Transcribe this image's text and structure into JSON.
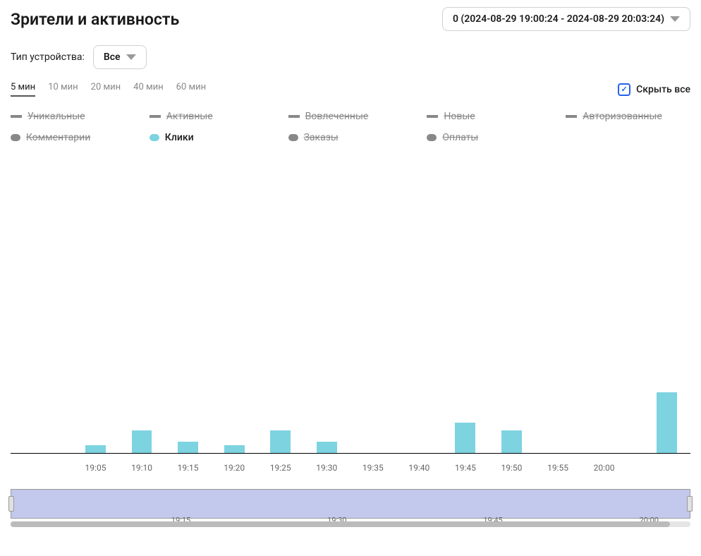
{
  "header": {
    "title": "Зрители и активность",
    "date_range": "0 (2024-08-29 19:00:24 - 2024-08-29 20:03:24)"
  },
  "device": {
    "label": "Тип устройства:",
    "value": "Все"
  },
  "intervals": {
    "options": [
      "5 мин",
      "10 мин",
      "20 мин",
      "40 мин",
      "60 мин"
    ],
    "active_index": 0
  },
  "hide_all": {
    "label": "Скрыть все"
  },
  "legend": {
    "items": [
      {
        "label": "Уникальные",
        "color": "#888888",
        "marker_type": "line",
        "enabled": false
      },
      {
        "label": "Активные",
        "color": "#888888",
        "marker_type": "line",
        "enabled": false
      },
      {
        "label": "Вовлеченные",
        "color": "#888888",
        "marker_type": "line",
        "enabled": false
      },
      {
        "label": "Новые",
        "color": "#888888",
        "marker_type": "line",
        "enabled": false
      },
      {
        "label": "Авторизованные",
        "color": "#888888",
        "marker_type": "line",
        "enabled": false
      },
      {
        "label": "Комментарии",
        "color": "#888888",
        "marker_type": "dot",
        "enabled": false
      },
      {
        "label": "Клики",
        "color": "#7dd3e0",
        "marker_type": "dot",
        "enabled": true
      },
      {
        "label": "Заказы",
        "color": "#888888",
        "marker_type": "dot",
        "enabled": false
      },
      {
        "label": "Оплаты",
        "color": "#888888",
        "marker_type": "dot",
        "enabled": false
      }
    ]
  },
  "chart": {
    "type": "bar",
    "bar_color": "#7dd3e0",
    "background_color": "#ffffff",
    "axis_color": "#000000",
    "label_color": "#666666",
    "label_fontsize": 12,
    "x_labels": [
      "19:05",
      "19:10",
      "19:15",
      "19:20",
      "19:25",
      "19:30",
      "19:35",
      "19:40",
      "19:45",
      "19:50",
      "19:55",
      "20:00"
    ],
    "x_label_positions_pct": [
      12.5,
      19.3,
      26.1,
      32.9,
      39.7,
      46.5,
      53.3,
      60.1,
      66.9,
      73.7,
      80.5,
      87.3
    ],
    "bars": [
      {
        "x_pct": 12.5,
        "value": 1
      },
      {
        "x_pct": 19.3,
        "value": 3
      },
      {
        "x_pct": 26.1,
        "value": 1.5
      },
      {
        "x_pct": 32.9,
        "value": 1
      },
      {
        "x_pct": 39.7,
        "value": 3
      },
      {
        "x_pct": 46.5,
        "value": 1.5
      },
      {
        "x_pct": 66.9,
        "value": 4
      },
      {
        "x_pct": 73.7,
        "value": 3
      },
      {
        "x_pct": 96.5,
        "value": 8
      }
    ],
    "y_max": 40,
    "bar_width_pct": 3.0
  },
  "scrubber": {
    "background_color": "#c3c8ed",
    "labels": [
      "19:15",
      "19:30",
      "19:45",
      "20:00"
    ],
    "label_positions_pct": [
      25,
      48,
      71,
      94
    ]
  }
}
